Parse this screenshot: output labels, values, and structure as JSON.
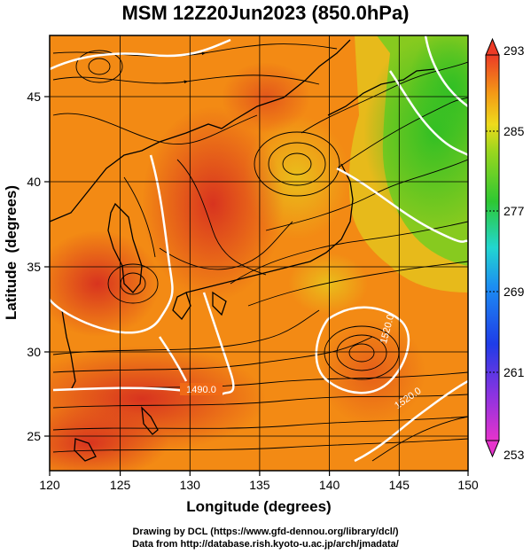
{
  "title": "MSM 12Z20Jun2023 (850.0hPa)",
  "footer": {
    "line1": "Drawing by DCL (https://www.gfd-dennou.org/library/dcl/)",
    "line2": "Data from http://database.rish.kyoto-u.ac.jp/arch/jmadata/"
  },
  "chart_data": {
    "type": "heatmap",
    "xlabel": "Longitude (degrees)",
    "ylabel": "Latitude  (degrees)",
    "xlim": [
      120,
      150
    ],
    "ylim": [
      22.4,
      47.6
    ],
    "xticks": [
      120,
      125,
      130,
      135,
      140,
      145,
      150
    ],
    "yticks": [
      25,
      30,
      35,
      40,
      45
    ],
    "colorbar": {
      "min": 253,
      "max": 293,
      "ticks": [
        293,
        285,
        277,
        269,
        261,
        253
      ]
    },
    "contour_labels": [
      "1490.0",
      "1520.0",
      "1520.0"
    ],
    "colors": {
      "hot": "#e23b24",
      "warm": "#f27a12",
      "mid": "#f4a81a",
      "yellow": "#d8d020",
      "green": "#3ec41a",
      "contour": "#ffffff",
      "streamline": "#000000"
    }
  }
}
